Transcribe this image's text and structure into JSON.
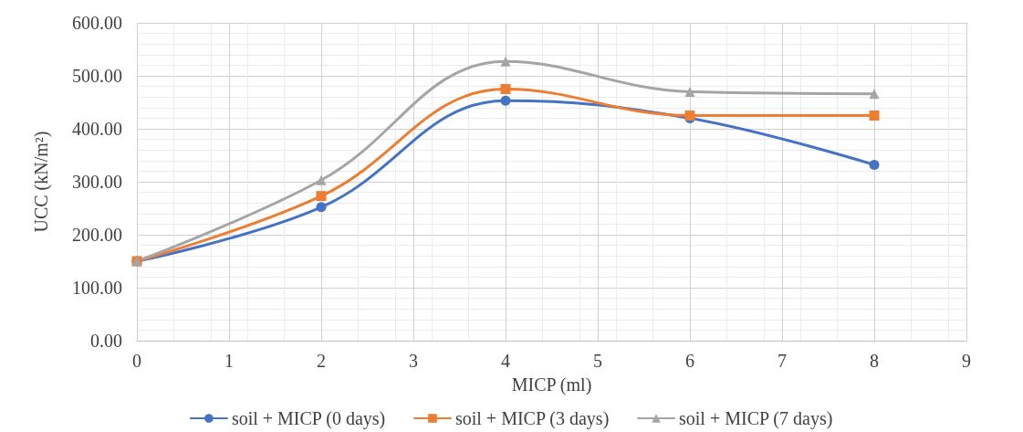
{
  "chart_data": {
    "type": "line",
    "xlabel": "MICP (ml)",
    "ylabel": "UCC (kN/m²)",
    "x": [
      0,
      2,
      4,
      6,
      8
    ],
    "series": [
      {
        "name": "soil + MICP (0 days)",
        "color": "#4472c4",
        "values": [
          150,
          252,
          453,
          420,
          332
        ],
        "marker": "circle"
      },
      {
        "name": "soil + MICP (3 days)",
        "color": "#ed7d31",
        "values": [
          150,
          273,
          475,
          425,
          425
        ],
        "marker": "square"
      },
      {
        "name": "soil + MICP (7 days)",
        "color": "#a5a5a5",
        "values": [
          150,
          303,
          527,
          470,
          466
        ],
        "marker": "triangle"
      }
    ],
    "xlim": [
      0,
      9
    ],
    "xticks": [
      0,
      1,
      2,
      3,
      4,
      5,
      6,
      7,
      8,
      9
    ],
    "ylim": [
      0,
      600
    ],
    "yticks": [
      {
        "value": 0,
        "label": "0.00"
      },
      {
        "value": 100,
        "label": "100.00"
      },
      {
        "value": 200,
        "label": "200.00"
      },
      {
        "value": 300,
        "label": "300.00"
      },
      {
        "value": 400,
        "label": "400.00"
      },
      {
        "value": 500,
        "label": "500.00"
      },
      {
        "value": 600,
        "label": "600.00"
      }
    ],
    "grid": true,
    "legend": "bottom"
  }
}
